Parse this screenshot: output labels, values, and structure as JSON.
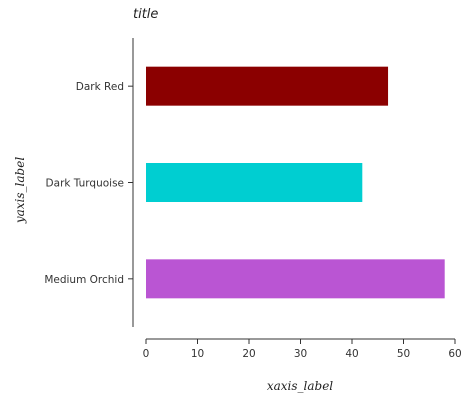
{
  "chart_data": {
    "type": "bar",
    "orientation": "horizontal",
    "title": "title",
    "xlabel": "xaxis_label",
    "ylabel": "yaxis_label",
    "categories": [
      "Medium Orchid",
      "Dark Turquoise",
      "Dark Red"
    ],
    "values": [
      58,
      42,
      47
    ],
    "colors": [
      "#ba55d3",
      "#00ced1",
      "#8b0000"
    ],
    "xlim": [
      0,
      60
    ],
    "xticks": [
      0,
      10,
      20,
      30,
      40,
      50,
      60
    ],
    "grid": false,
    "legend": "none"
  }
}
